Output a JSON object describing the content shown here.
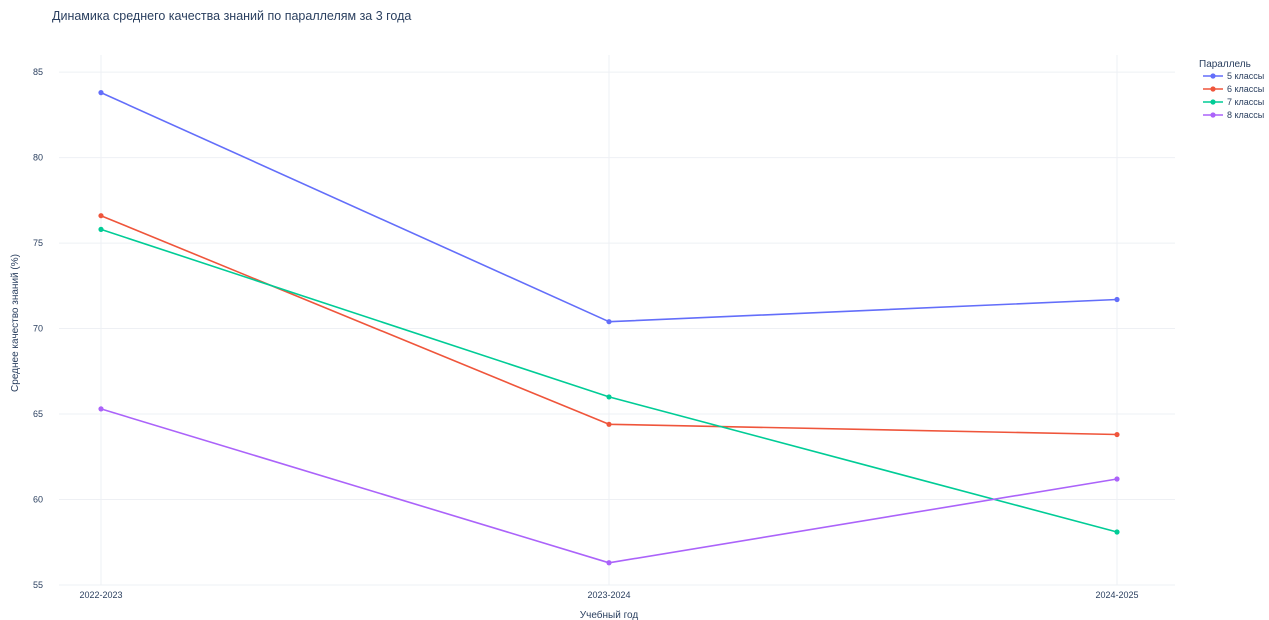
{
  "chart_data": {
    "type": "line",
    "title": "Динамика среднего качества знаний по параллелям за 3 года",
    "xlabel": "Учебный год",
    "ylabel": "Среднее качество знаний (%)",
    "categories": [
      "2022-2023",
      "2023-2024",
      "2024-2025"
    ],
    "ylim": [
      55,
      86
    ],
    "yticks": [
      55,
      60,
      65,
      70,
      75,
      80,
      85
    ],
    "grid": true,
    "legend_title": "Параллель",
    "legend_position": "top-right",
    "series": [
      {
        "name": "5 классы",
        "color": "#636efa",
        "values": [
          83.8,
          70.4,
          71.7
        ]
      },
      {
        "name": "6 классы",
        "color": "#ef553b",
        "values": [
          76.6,
          64.4,
          63.8
        ]
      },
      {
        "name": "7 классы",
        "color": "#00cc96",
        "values": [
          75.8,
          66.0,
          58.1
        ]
      },
      {
        "name": "8 классы",
        "color": "#ab63fa",
        "values": [
          65.3,
          56.3,
          61.2
        ]
      }
    ]
  }
}
